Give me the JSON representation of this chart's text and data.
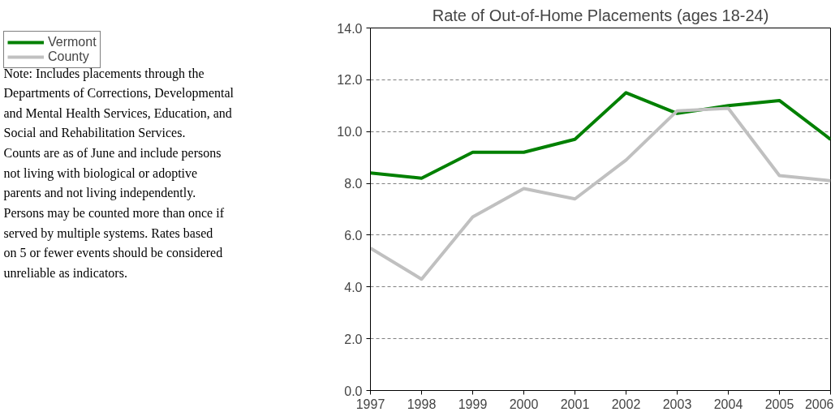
{
  "chart_data": {
    "type": "line",
    "title": "Rate of Out-of-Home Placements (ages 18-24)",
    "x": [
      1997,
      1998,
      1999,
      2000,
      2001,
      2002,
      2003,
      2004,
      2005,
      2006
    ],
    "xlim": [
      1997,
      2006
    ],
    "xticks": [
      1997,
      1998,
      1999,
      2000,
      2001,
      2002,
      2003,
      2004,
      2005,
      2006
    ],
    "ylim": [
      0,
      14
    ],
    "yticks": [
      {
        "value": 0,
        "label": "0.0"
      },
      {
        "value": 2,
        "label": "2.0"
      },
      {
        "value": 4,
        "label": "4.0"
      },
      {
        "value": 6,
        "label": "6.0"
      },
      {
        "value": 8,
        "label": "8.0"
      },
      {
        "value": 10,
        "label": "10.0"
      },
      {
        "value": 12,
        "label": "12.0"
      },
      {
        "value": 14,
        "label": "14.0"
      }
    ],
    "grid": "y",
    "legend": "top left",
    "marker": "none",
    "line_style": "solid",
    "series": [
      {
        "name": "Vermont",
        "color": "#008000",
        "values": [
          8.4,
          8.2,
          9.2,
          9.2,
          9.7,
          11.5,
          10.7,
          11.0,
          11.2,
          9.7
        ]
      },
      {
        "name": "County",
        "color": "#c0c0c0",
        "values": [
          5.5,
          4.3,
          6.7,
          7.8,
          7.4,
          8.9,
          10.8,
          10.9,
          8.3,
          8.1
        ]
      }
    ],
    "annotations": [
      "Note: Includes placements through the Departments of Corrections, Developmental and Mental Health Services, Education, and Social and Rehabilitation Services.  Counts are as of June and include persons not living with biological or adoptive parents and not living independently.  Persons may be counted more than once if served by multiple systems.  Rates based on 5 or fewer events should be considered unreliable as indicators."
    ]
  }
}
